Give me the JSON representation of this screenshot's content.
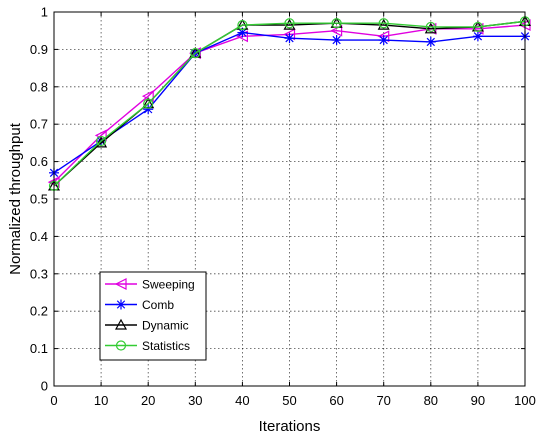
{
  "chart_data": {
    "type": "line",
    "xlabel": "Iterations",
    "ylabel": "Normalized throughput",
    "xlim": [
      0,
      100
    ],
    "ylim": [
      0,
      1
    ],
    "xticks": [
      0,
      10,
      20,
      30,
      40,
      50,
      60,
      70,
      80,
      90,
      100
    ],
    "yticks": [
      0,
      0.1,
      0.2,
      0.3,
      0.4,
      0.5,
      0.6,
      0.7,
      0.8,
      0.9,
      1
    ],
    "grid": true,
    "legend_position": "lower-left",
    "x": [
      0,
      10,
      20,
      30,
      40,
      50,
      60,
      70,
      80,
      90,
      100
    ],
    "series": [
      {
        "name": "Sweeping",
        "color": "#e000e0",
        "marker": "triangle-left",
        "values": [
          0.545,
          0.67,
          0.775,
          0.89,
          0.935,
          0.94,
          0.95,
          0.935,
          0.955,
          0.955,
          0.965
        ]
      },
      {
        "name": "Comb",
        "color": "#0000ff",
        "marker": "star",
        "values": [
          0.57,
          0.655,
          0.74,
          0.89,
          0.945,
          0.93,
          0.925,
          0.925,
          0.92,
          0.935,
          0.935
        ]
      },
      {
        "name": "Dynamic",
        "color": "#000000",
        "marker": "triangle-up",
        "values": [
          0.535,
          0.65,
          0.755,
          0.89,
          0.965,
          0.965,
          0.97,
          0.965,
          0.955,
          0.96,
          0.975
        ]
      },
      {
        "name": "Statistics",
        "color": "#33cc33",
        "marker": "circle",
        "values": [
          0.535,
          0.655,
          0.755,
          0.89,
          0.965,
          0.97,
          0.97,
          0.97,
          0.96,
          0.96,
          0.975
        ]
      }
    ]
  }
}
